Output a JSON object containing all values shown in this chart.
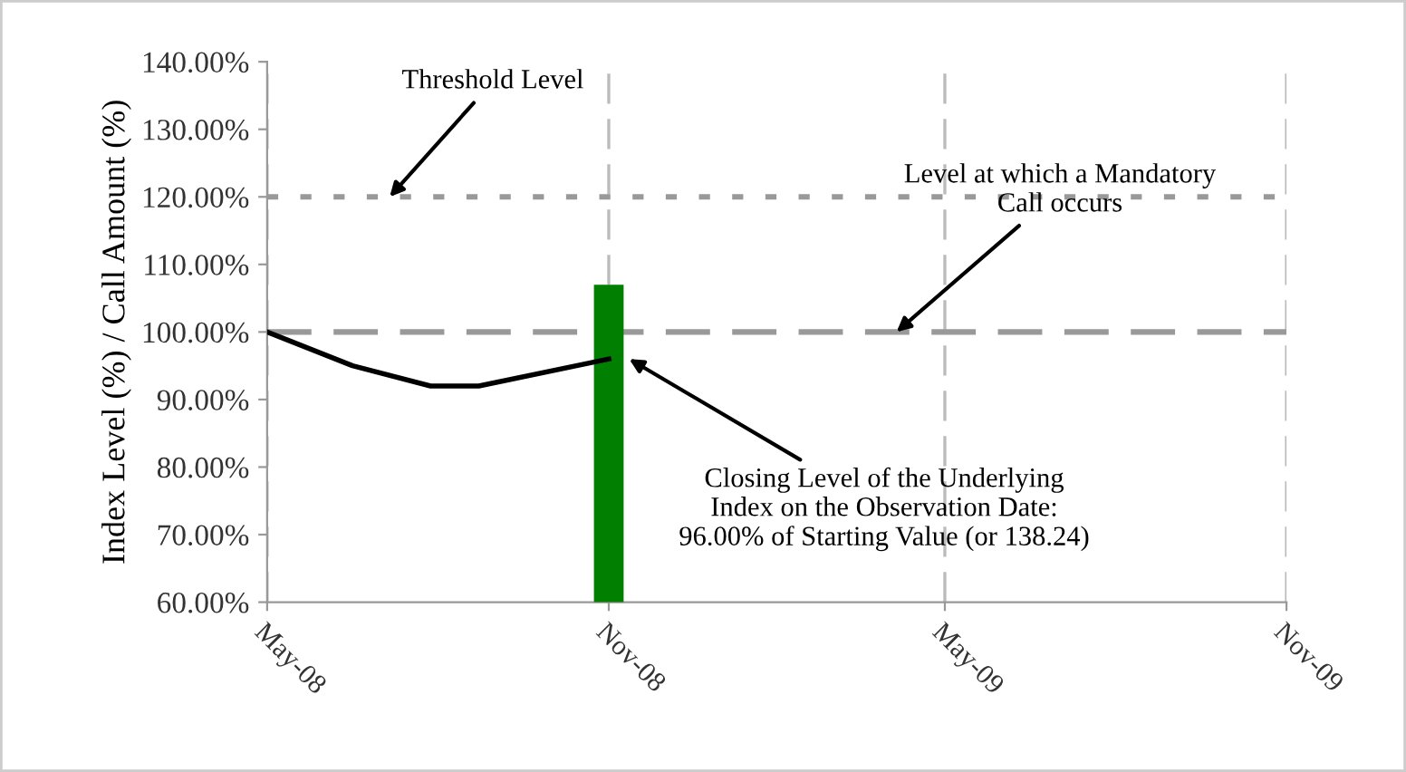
{
  "chart_data": {
    "type": "line",
    "ylabel": "Index Level (%) / Call Amount (%)",
    "xlim": [
      "2008-05-01",
      "2009-11-01"
    ],
    "xticks": [
      {
        "value": "2008-05-01",
        "label": "May-08"
      },
      {
        "value": "2008-11-01",
        "label": "Nov-08"
      },
      {
        "value": "2009-05-01",
        "label": "May-09"
      },
      {
        "value": "2009-11-01",
        "label": "Nov-09"
      }
    ],
    "ylim": [
      60,
      140
    ],
    "yticks": [
      {
        "value": 60,
        "label": "60.00%"
      },
      {
        "value": 70,
        "label": "70.00%"
      },
      {
        "value": 80,
        "label": "80.00%"
      },
      {
        "value": 90,
        "label": "90.00%"
      },
      {
        "value": 100,
        "label": "100.00%"
      },
      {
        "value": 110,
        "label": "110.00%"
      },
      {
        "value": 120,
        "label": "120.00%"
      },
      {
        "value": 130,
        "label": "130.00%"
      },
      {
        "value": 140,
        "label": "140.00%"
      }
    ],
    "grid": "x",
    "legend": false,
    "marker": "none",
    "line_style": "solid",
    "series": [
      {
        "type": "line",
        "color": "#000000",
        "x": [
          "2008-05-01",
          "2008-06-16",
          "2008-07-28",
          "2008-08-23",
          "2008-11-01"
        ],
        "values": [
          100,
          95,
          92,
          92,
          96
        ]
      },
      {
        "type": "bar",
        "color": "#007f00",
        "x": [
          "2008-11-01"
        ],
        "values": [
          107
        ]
      }
    ],
    "ref_lines": [
      {
        "axis": "y",
        "value": 120,
        "color": "#999999",
        "line_style": "dotted"
      },
      {
        "axis": "y",
        "value": 100,
        "color": "#999999",
        "line_style": "dashed"
      }
    ],
    "annotations": [
      {
        "text": "Threshold Level",
        "x": "2008-07-06",
        "y": 120
      },
      {
        "text": "Level at which a Mandatory\nCall occurs",
        "x": "2009-04-05",
        "y": 100
      },
      {
        "text": "Closing Level of the Underlying\nIndex on the Observation Date:\n96.00% of Starting Value (or 138.24)",
        "x": "2008-11-12",
        "y": 96
      }
    ]
  }
}
